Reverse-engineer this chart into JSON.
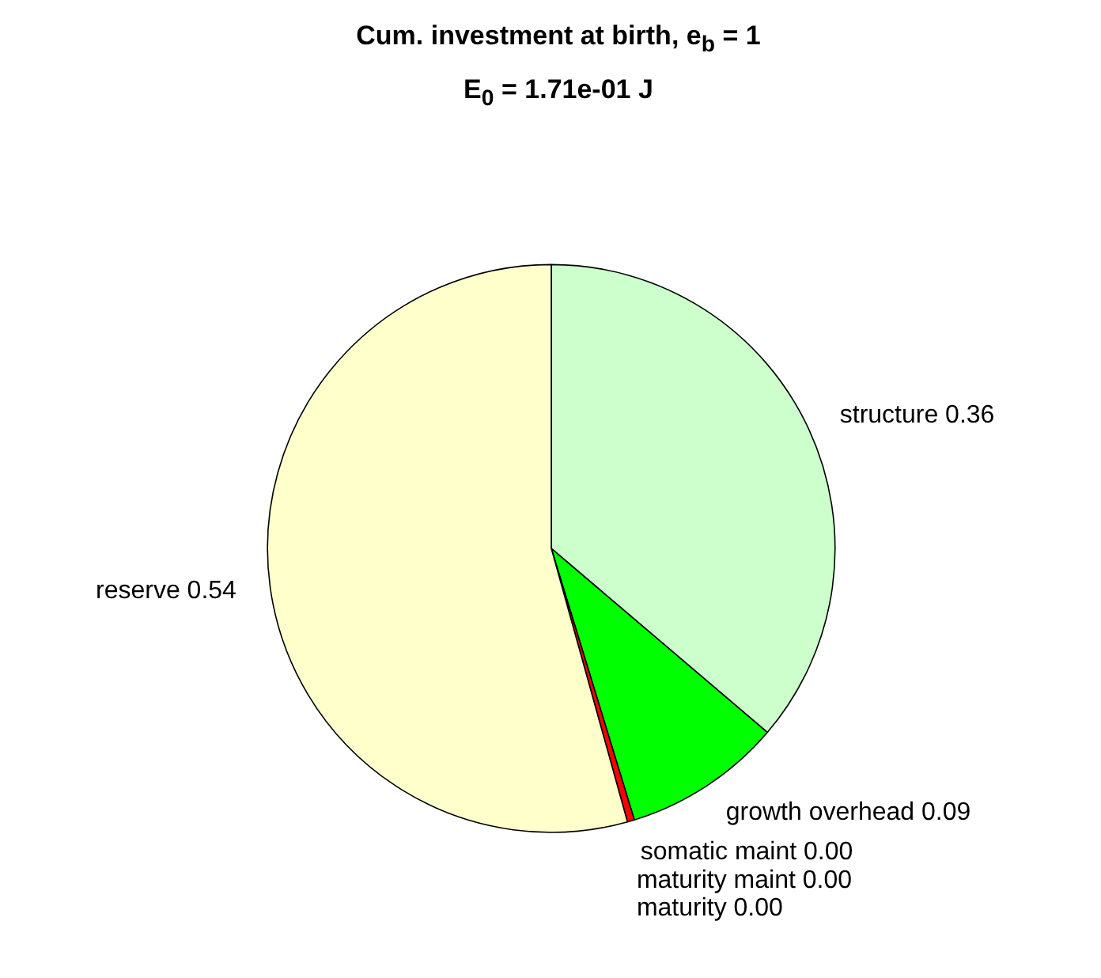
{
  "chart_data": {
    "type": "pie",
    "title": "Cum. investment at birth, e$_{b}$ = 1",
    "subtitle": "E$_{0}$ = 1.71e-01 J",
    "categories": [
      "structure",
      "growth overhead",
      "somatic maint",
      "maturity maint",
      "maturity",
      "reserve"
    ],
    "values": [
      0.36,
      0.09,
      0.004,
      0,
      0,
      0.54
    ],
    "value_labels": [
      "0.36",
      "0.09",
      "0.00",
      "0.00",
      "0.00",
      "0.54"
    ],
    "colors": [
      "#ccffcc",
      "#00ff00",
      "#ff0000",
      "#ff00ff",
      "#0000ff",
      "#ffffcc"
    ]
  }
}
